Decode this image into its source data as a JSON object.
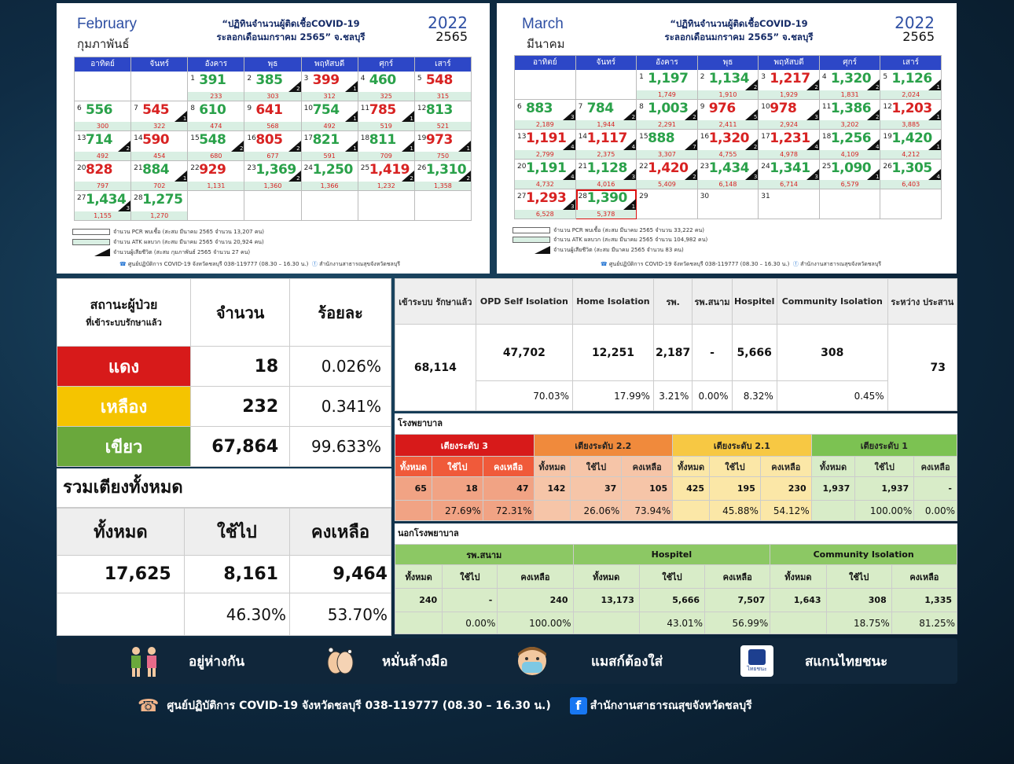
{
  "feb": {
    "month_en": "February",
    "month_th": "กุมภาพันธ์",
    "title1": "“ปฏิทินจำนวนผู้ติดเชื้อCOVID-19",
    "title2": "ระลอกเดือนมกราคม 2565” จ.ชลบุรี",
    "year": "2022",
    "year_th": "2565",
    "weekdays": [
      "อาทิตย์",
      "จันทร์",
      "อังคาร",
      "พุธ",
      "พฤหัสบดี",
      "ศุกร์",
      "เสาร์"
    ],
    "days": [
      {
        "d": "",
        "v": "",
        "a": ""
      },
      {
        "d": "",
        "v": "",
        "a": ""
      },
      {
        "d": "1",
        "v": "391",
        "a": "233"
      },
      {
        "d": "2",
        "v": "385",
        "a": "303",
        "x": "2"
      },
      {
        "d": "3",
        "v": "399",
        "a": "312",
        "x": "1"
      },
      {
        "d": "4",
        "v": "460",
        "a": "325"
      },
      {
        "d": "5",
        "v": "548",
        "a": "315"
      },
      {
        "d": "6",
        "v": "556",
        "a": "300"
      },
      {
        "d": "7",
        "v": "545",
        "a": "322",
        "x": "1"
      },
      {
        "d": "8",
        "v": "610",
        "a": "474"
      },
      {
        "d": "9",
        "v": "641",
        "a": "568"
      },
      {
        "d": "10",
        "v": "754",
        "a": "492",
        "x": "1"
      },
      {
        "d": "11",
        "v": "785",
        "a": "519",
        "x": "1"
      },
      {
        "d": "12",
        "v": "813",
        "a": "521"
      },
      {
        "d": "13",
        "v": "714",
        "a": "492",
        "x": "2"
      },
      {
        "d": "14",
        "v": "590",
        "a": "454"
      },
      {
        "d": "15",
        "v": "548",
        "a": "680",
        "x": "2"
      },
      {
        "d": "16",
        "v": "805",
        "a": "677",
        "x": "2"
      },
      {
        "d": "17",
        "v": "821",
        "a": "591",
        "x": "1"
      },
      {
        "d": "18",
        "v": "811",
        "a": "709",
        "x": "1"
      },
      {
        "d": "19",
        "v": "973",
        "a": "750",
        "x": "1"
      },
      {
        "d": "20",
        "v": "828",
        "a": "797"
      },
      {
        "d": "21",
        "v": "884",
        "a": "702",
        "x": "1"
      },
      {
        "d": "22",
        "v": "929",
        "a": "1,131"
      },
      {
        "d": "23",
        "v": "1,369",
        "a": "1,360",
        "x": "2"
      },
      {
        "d": "24",
        "v": "1,250",
        "a": "1,366"
      },
      {
        "d": "25",
        "v": "1,419",
        "a": "1,232",
        "x": "2"
      },
      {
        "d": "26",
        "v": "1,310",
        "a": "1,358",
        "x": "2"
      },
      {
        "d": "27",
        "v": "1,434",
        "a": "1,155",
        "x": "3"
      },
      {
        "d": "28",
        "v": "1,275",
        "a": "1,270"
      },
      {
        "d": "",
        "v": "",
        "a": ""
      },
      {
        "d": "",
        "v": "",
        "a": ""
      },
      {
        "d": "",
        "v": "",
        "a": ""
      },
      {
        "d": "",
        "v": "",
        "a": ""
      },
      {
        "d": "",
        "v": "",
        "a": ""
      }
    ],
    "legend": [
      "จำนวน PCR พบเชื้อ (สะสม มีนาคม 2565 จำนวน 13,207 คน)",
      "จำนวน ATK ผลบวก (สะสม มีนาคม 2565 จำนวน 20,924 คน)",
      "จำนวนผู้เสียชีวิต (สะสม กุมภาพันธ์ 2565 จำนวน 27 คน)"
    ],
    "contact": "ศูนย์ปฏิบัติการ COVID-19 จังหวัดชลบุรี 038-119777 (08.30 – 16.30 น.)",
    "fb": "สำนักงานสาธารณสุขจังหวัดชลบุรี"
  },
  "mar": {
    "month_en": "March",
    "month_th": "มีนาคม",
    "title1": "“ปฏิทินจำนวนผู้ติดเชื้อCOVID-19",
    "title2": "ระลอกเดือนมกราคม 2565” จ.ชลบุรี",
    "year": "2022",
    "year_th": "2565",
    "weekdays": [
      "อาทิตย์",
      "จันทร์",
      "อังคาร",
      "พุธ",
      "พฤหัสบดี",
      "ศุกร์",
      "เสาร์"
    ],
    "days": [
      {
        "d": "",
        "v": "",
        "a": ""
      },
      {
        "d": "",
        "v": "",
        "a": ""
      },
      {
        "d": "1",
        "v": "1,197",
        "a": "1,749"
      },
      {
        "d": "2",
        "v": "1,134",
        "a": "1,910",
        "x": "2"
      },
      {
        "d": "3",
        "v": "1,217",
        "a": "1,929",
        "x": "2"
      },
      {
        "d": "4",
        "v": "1,320",
        "a": "1,831",
        "x": "2"
      },
      {
        "d": "5",
        "v": "1,126",
        "a": "2,024",
        "x": "1"
      },
      {
        "d": "6",
        "v": "883",
        "a": "2,189",
        "x": "3"
      },
      {
        "d": "7",
        "v": "784",
        "a": "1,944",
        "x": "2"
      },
      {
        "d": "8",
        "v": "1,003",
        "a": "2,291",
        "x": "2"
      },
      {
        "d": "9",
        "v": "976",
        "a": "2,411",
        "x": "5"
      },
      {
        "d": "10",
        "v": "978",
        "a": "2,924",
        "x": "3"
      },
      {
        "d": "11",
        "v": "1,386",
        "a": "3,202",
        "x": "2"
      },
      {
        "d": "12",
        "v": "1,203",
        "a": "3,885",
        "x": "1"
      },
      {
        "d": "13",
        "v": "1,191",
        "a": "2,799",
        "x": "4"
      },
      {
        "d": "14",
        "v": "1,117",
        "a": "2,375",
        "x": "4"
      },
      {
        "d": "15",
        "v": "888",
        "a": "3,307",
        "x": "7"
      },
      {
        "d": "16",
        "v": "1,320",
        "a": "4,755",
        "x": "2"
      },
      {
        "d": "17",
        "v": "1,231",
        "a": "4,978",
        "x": "4"
      },
      {
        "d": "18",
        "v": "1,256",
        "a": "4,109",
        "x": "4"
      },
      {
        "d": "19",
        "v": "1,420",
        "a": "4,212",
        "x": "1"
      },
      {
        "d": "20",
        "v": "1,191",
        "a": "4,732",
        "x": "4"
      },
      {
        "d": "21",
        "v": "1,128",
        "a": "4,016",
        "x": "3"
      },
      {
        "d": "22",
        "v": "1,420",
        "a": "5,409",
        "x": "2"
      },
      {
        "d": "23",
        "v": "1,434",
        "a": "6,148",
        "x": "3"
      },
      {
        "d": "24",
        "v": "1,341",
        "a": "6,714",
        "x": "3"
      },
      {
        "d": "25",
        "v": "1,090",
        "a": "6,579",
        "x": "1"
      },
      {
        "d": "26",
        "v": "1,305",
        "a": "6,403",
        "x": "4"
      },
      {
        "d": "27",
        "v": "1,293",
        "a": "6,528",
        "x": "3"
      },
      {
        "d": "28",
        "v": "1,390",
        "a": "5,378",
        "x": "1",
        "sel": true
      },
      {
        "d": "29",
        "v": "",
        "a": ""
      },
      {
        "d": "30",
        "v": "",
        "a": ""
      },
      {
        "d": "31",
        "v": "",
        "a": ""
      },
      {
        "d": "",
        "v": "",
        "a": ""
      },
      {
        "d": "",
        "v": "",
        "a": ""
      }
    ],
    "legend": [
      "จำนวน PCR พบเชื้อ (สะสม มีนาคม 2565 จำนวน 33,222 คน)",
      "จำนวน ATK ผลบวก (สะสม มีนาคม 2565 จำนวน 104,982 คน)",
      "จำนวนผู้เสียชีวิต (สะสม มีนาคม 2565 จำนวน 83 คน)"
    ],
    "contact": "ศูนย์ปฏิบัติการ COVID-19 จังหวัดชลบุรี 038-119777 (08.30 – 16.30 น.)",
    "fb": "สำนักงานสาธารณสุขจังหวัดชลบุรี"
  },
  "status": {
    "h1": "สถานะผู้ป่วย",
    "h1b": "ที่เข้าระบบรักษาแล้ว",
    "h2": "จำนวน",
    "h3": "ร้อยละ",
    "rows": [
      {
        "label": "แดง",
        "count": "18",
        "pct": "0.026%",
        "color": "#d71a1a"
      },
      {
        "label": "เหลือง",
        "count": "232",
        "pct": "0.341%",
        "color": "#f5c400"
      },
      {
        "label": "เขียว",
        "count": "67,864",
        "pct": "99.633%",
        "color": "#6aa83c"
      }
    ]
  },
  "beds": {
    "title": "รวมเตียงทั้งหมด",
    "h1": "ทั้งหมด",
    "h2": "ใช้ไป",
    "h3": "คงเหลือ",
    "total": "17,625",
    "used": "8,161",
    "remain": "9,464",
    "used_pct": "46.30%",
    "remain_pct": "53.70%"
  },
  "summary": {
    "headers": [
      "เข้าระบบ รักษาแล้ว",
      "OPD Self Isolation",
      "Home Isolation",
      "รพ.",
      "รพ.สนาม",
      "Hospitel",
      "Community Isolation",
      "ระหว่าง ประสาน"
    ],
    "total": "68,114",
    "values": [
      "47,702",
      "12,251",
      "2,187",
      "-",
      "5,666",
      "308"
    ],
    "pcts": [
      "70.03%",
      "17.99%",
      "3.21%",
      "0.00%",
      "8.32%",
      "0.45%"
    ],
    "pending": "73"
  },
  "hospital": {
    "title": "โรงพยาบาล",
    "groups": [
      {
        "name": "เตียงระดับ 3",
        "color": "#d71a1a",
        "light": "#f1a384"
      },
      {
        "name": "เตียงระดับ 2.2",
        "color": "#f08a3c",
        "light": "#f6c5a8"
      },
      {
        "name": "เตียงระดับ 2.1",
        "color": "#f7c843",
        "light": "#fbe7a7"
      },
      {
        "name": "เตียงระดับ 1",
        "color": "#7cc252",
        "light": "#d8ecc8"
      }
    ],
    "sub": [
      "ทั้งหมด",
      "ใช้ไป",
      "คงเหลือ"
    ],
    "values": [
      [
        "65",
        "18",
        "47"
      ],
      [
        "142",
        "37",
        "105"
      ],
      [
        "425",
        "195",
        "230"
      ],
      [
        "1,937",
        "1,937",
        "-"
      ]
    ],
    "pcts": [
      [
        "",
        "27.69%",
        "72.31%"
      ],
      [
        "",
        "26.06%",
        "73.94%"
      ],
      [
        "",
        "45.88%",
        "54.12%"
      ],
      [
        "",
        "100.00%",
        "0.00%"
      ]
    ]
  },
  "outside": {
    "title": "นอกโรงพยาบาล",
    "groups": [
      "รพ.สนาม",
      "Hospitel",
      "Community Isolation"
    ],
    "sub": [
      "ทั้งหมด",
      "ใช้ไป",
      "คงเหลือ"
    ],
    "values": [
      [
        "240",
        "-",
        "240"
      ],
      [
        "13,173",
        "5,666",
        "7,507"
      ],
      [
        "1,643",
        "308",
        "1,335"
      ]
    ],
    "pcts": [
      [
        "",
        "0.00%",
        "100.00%"
      ],
      [
        "",
        "43.01%",
        "56.99%"
      ],
      [
        "",
        "18.75%",
        "81.25%"
      ]
    ]
  },
  "banner": {
    "items": [
      {
        "icon": "people-distance-icon",
        "text": "อยู่ห่างกัน"
      },
      {
        "icon": "hand-wash-icon",
        "text": "หมั่นล้างมือ"
      },
      {
        "icon": "mask-icon",
        "text": "แมสก์ต้องใส่"
      },
      {
        "icon": "thaichana-icon",
        "text": "สแกนไทยชนะ",
        "badge": "ไทยชนะ"
      }
    ]
  },
  "footer": {
    "phone": "ศูนย์ปฏิบัติการ COVID-19 จังหวัดชลบุรี 038-119777 (08.30 – 16.30 น.)",
    "fb": "สำนักงานสาธารณสุขจังหวัดชลบุรี"
  }
}
